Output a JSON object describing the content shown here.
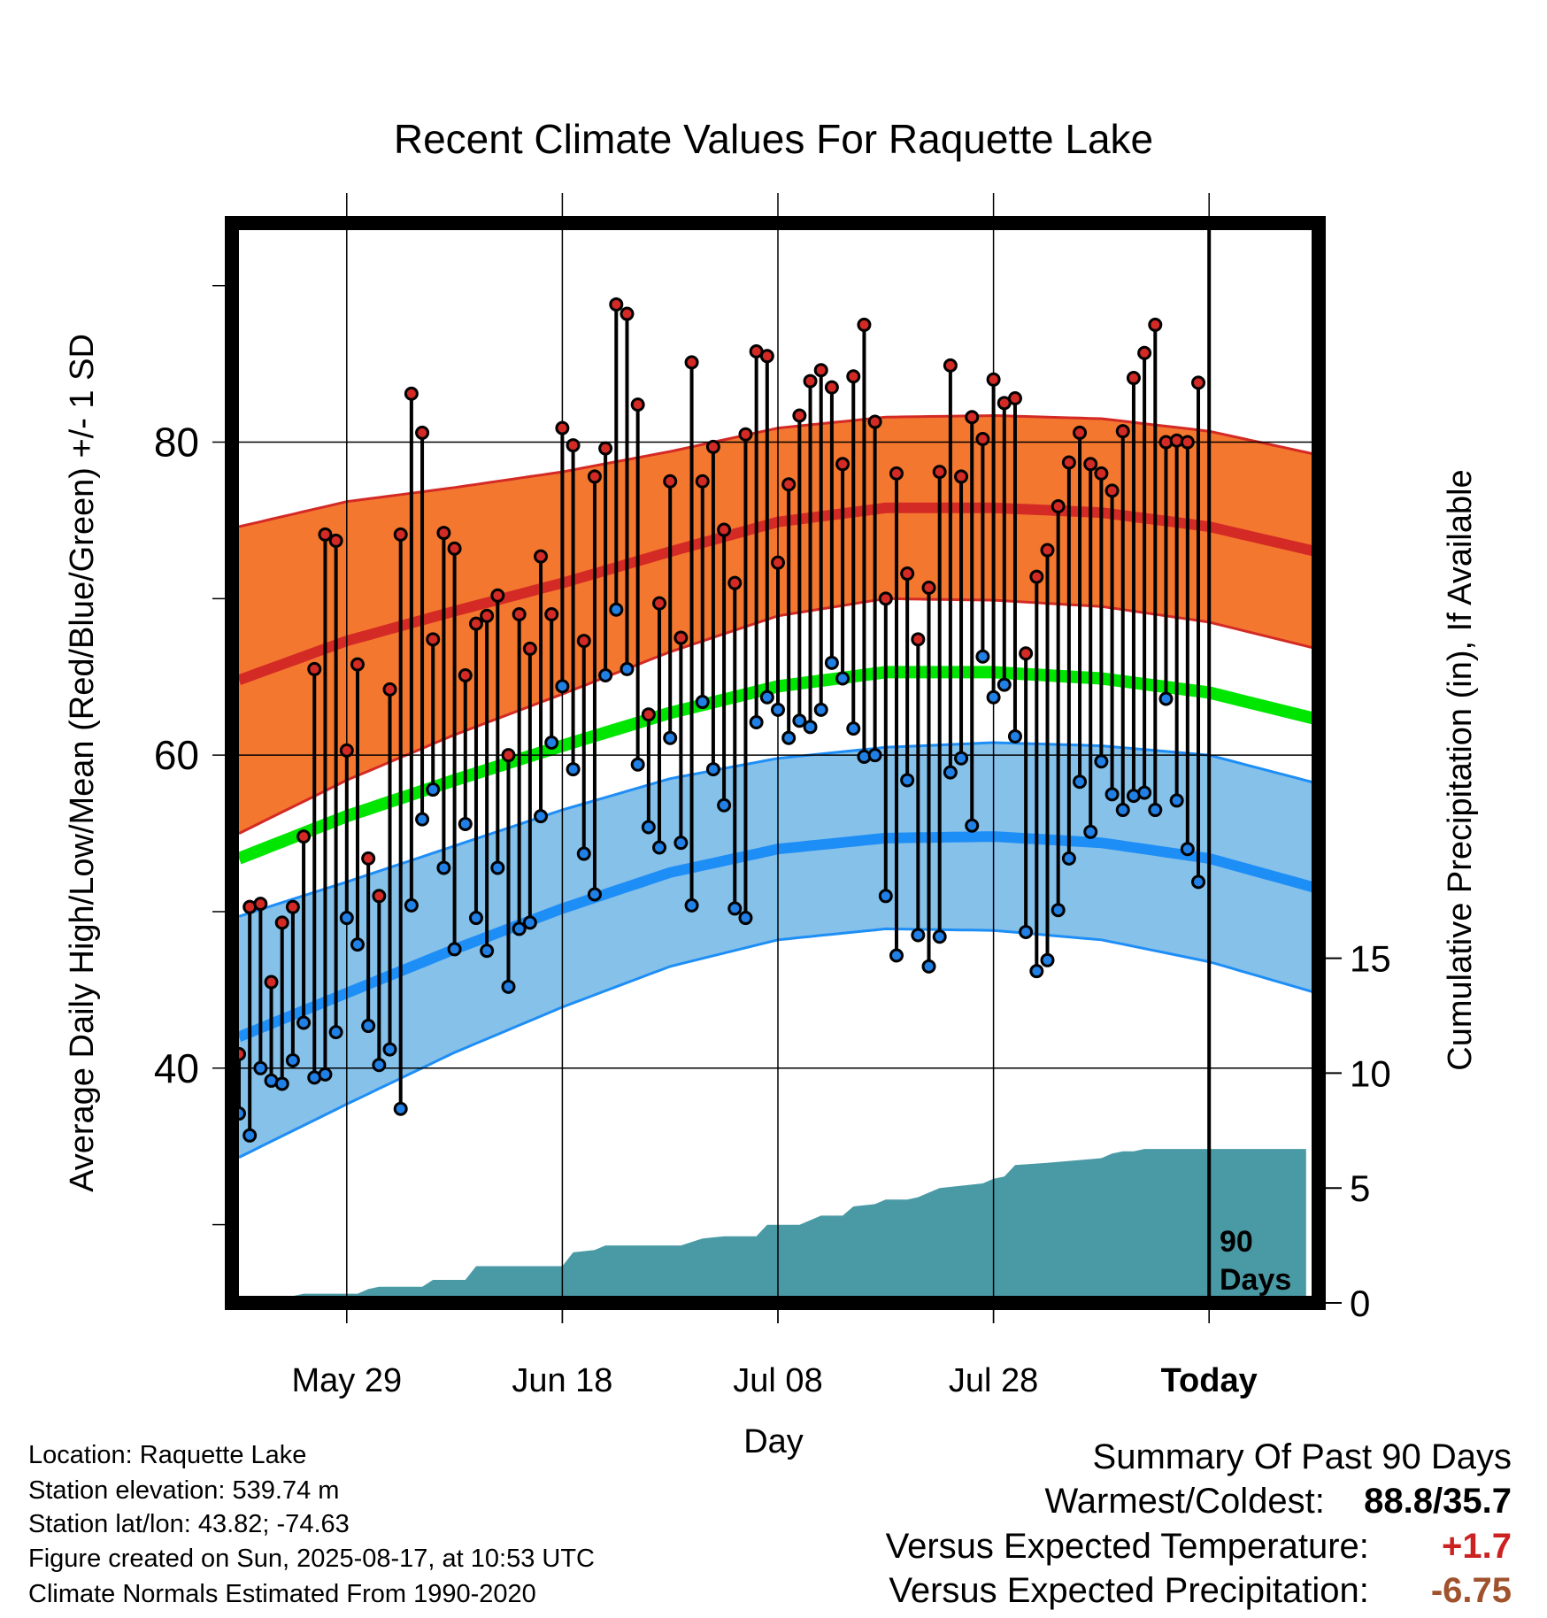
{
  "chart_data": {
    "type": "line",
    "title": "Recent Climate Values For Raquette Lake",
    "xlabel": "Day",
    "ylabel": "Average Daily High/Low/Mean (Red/Blue/Green) +/- 1 SD",
    "y2label": "Cumulative Precipitation (in), If Available",
    "x_tick_labels": [
      "May 29",
      "Jun 18",
      "Jul 08",
      "Jul 28",
      "Today"
    ],
    "y_ticks": [
      40,
      60,
      80
    ],
    "y2_ticks": [
      0,
      5,
      10,
      15
    ],
    "ylim": [
      25,
      94
    ],
    "y2lim": [
      0,
      47
    ],
    "today_label": [
      "90",
      "Days"
    ],
    "grid": true,
    "colors": {
      "high_band": "#f4772f",
      "high_mean": "#d42a25",
      "low_band": "#86c1e9",
      "low_mean": "#1e8ef7",
      "mean": "#00e600",
      "precip": "#4a9aa6",
      "high_dot": "#d42a25",
      "low_dot": "#2080e6"
    },
    "normals": {
      "days": [
        0,
        10,
        20,
        30,
        40,
        50,
        60,
        70,
        80,
        90,
        100
      ],
      "high_mean": [
        64.8,
        67.3,
        69.2,
        71.0,
        73.0,
        74.9,
        75.8,
        75.8,
        75.5,
        74.6,
        73.0
      ],
      "high_sd": [
        9.8,
        8.9,
        7.9,
        7.1,
        6.4,
        6.0,
        5.8,
        5.9,
        6.0,
        6.1,
        6.2
      ],
      "low_mean": [
        42.0,
        44.8,
        47.6,
        50.2,
        52.5,
        54.0,
        54.7,
        54.8,
        54.4,
        53.4,
        51.5
      ],
      "low_sd": [
        7.7,
        7.1,
        6.6,
        6.3,
        6.0,
        5.8,
        5.8,
        6.0,
        6.2,
        6.6,
        6.7
      ],
      "mean": [
        53.4,
        56.1,
        58.4,
        60.6,
        62.7,
        64.4,
        65.3,
        65.3,
        64.9,
        64.0,
        62.3
      ]
    },
    "highs": [
      40.9,
      50.3,
      50.5,
      45.5,
      49.3,
      50.3,
      54.8,
      65.5,
      74.1,
      73.7,
      60.3,
      65.8,
      53.4,
      51.0,
      64.2,
      74.1,
      83.1,
      80.6,
      67.4,
      74.2,
      73.2,
      65.1,
      68.4,
      68.9,
      70.2,
      60.0,
      69.0,
      66.8,
      72.7,
      69.0,
      80.9,
      79.8,
      67.3,
      77.8,
      79.6,
      88.8,
      88.2,
      82.4,
      62.6,
      69.7,
      77.5,
      67.5,
      85.1,
      77.5,
      79.7,
      74.4,
      71.0,
      80.5,
      85.8,
      85.5,
      72.3,
      77.3,
      81.7,
      83.9,
      84.6,
      83.5,
      78.6,
      84.2,
      87.5,
      81.3,
      70.0,
      78.0,
      71.6,
      67.4,
      70.7,
      78.1,
      84.9,
      77.8,
      81.6,
      80.2,
      84.0,
      82.5,
      82.8,
      66.5,
      71.4,
      73.1,
      75.9,
      78.7,
      80.6,
      78.6,
      78.0,
      76.9,
      80.7,
      84.1,
      85.7,
      87.5,
      80.0,
      80.1,
      80.0,
      83.8
    ],
    "lows": [
      37.1,
      35.7,
      40.0,
      39.2,
      39.0,
      40.5,
      42.9,
      39.4,
      39.6,
      42.3,
      49.6,
      47.9,
      42.7,
      40.2,
      41.2,
      37.4,
      50.4,
      55.9,
      57.8,
      52.8,
      47.6,
      55.6,
      49.6,
      47.5,
      52.8,
      45.2,
      48.9,
      49.3,
      56.1,
      60.8,
      64.4,
      59.1,
      53.7,
      51.1,
      65.1,
      69.3,
      65.5,
      59.4,
      55.4,
      54.1,
      61.1,
      54.4,
      50.4,
      63.4,
      59.1,
      56.8,
      50.2,
      49.6,
      62.1,
      63.7,
      62.9,
      61.1,
      62.2,
      61.8,
      62.9,
      65.9,
      64.9,
      61.7,
      59.9,
      60.0,
      51.0,
      47.2,
      58.4,
      48.5,
      46.5,
      48.4,
      58.9,
      59.8,
      55.5,
      66.3,
      63.7,
      64.5,
      61.2,
      48.7,
      46.2,
      46.9,
      50.1,
      53.4,
      58.3,
      55.1,
      59.6,
      57.5,
      56.5,
      57.4,
      57.6,
      56.5,
      63.6,
      57.1,
      54.0,
      51.9
    ],
    "precip_cumulative": [
      [
        0,
        0
      ],
      [
        4,
        0
      ],
      [
        5,
        0.3
      ],
      [
        6,
        0.4
      ],
      [
        11,
        0.4
      ],
      [
        12,
        0.6
      ],
      [
        13,
        0.7
      ],
      [
        17,
        0.7
      ],
      [
        18,
        1.0
      ],
      [
        21,
        1.0
      ],
      [
        22,
        1.6
      ],
      [
        30,
        1.6
      ],
      [
        31,
        2.2
      ],
      [
        33,
        2.3
      ],
      [
        34,
        2.5
      ],
      [
        41,
        2.5
      ],
      [
        43,
        2.8
      ],
      [
        45,
        2.9
      ],
      [
        48,
        2.9
      ],
      [
        49,
        3.4
      ],
      [
        52,
        3.4
      ],
      [
        54,
        3.8
      ],
      [
        56,
        3.8
      ],
      [
        57,
        4.2
      ],
      [
        59,
        4.3
      ],
      [
        60,
        4.5
      ],
      [
        61,
        4.5
      ],
      [
        62,
        4.5
      ],
      [
        63,
        4.6
      ],
      [
        64,
        4.8
      ],
      [
        65,
        5.0
      ],
      [
        67,
        5.1
      ],
      [
        69,
        5.2
      ],
      [
        70,
        5.4
      ],
      [
        71,
        5.5
      ],
      [
        72,
        6.0
      ],
      [
        75,
        6.1
      ],
      [
        80,
        6.3
      ],
      [
        81,
        6.5
      ],
      [
        82,
        6.6
      ],
      [
        83,
        6.6
      ],
      [
        84,
        6.7
      ],
      [
        85,
        6.7
      ],
      [
        90,
        6.7
      ],
      [
        99,
        6.7
      ]
    ],
    "summary": {
      "title": "Summary Of Past 90 Days",
      "warm_cold_label": "Warmest/Coldest:",
      "warm_cold_value": "88.8/35.7",
      "temp_label": "Versus Expected Temperature:",
      "temp_value": "+1.7",
      "temp_color": "#cc2222",
      "precip_label": "Versus Expected Precipitation:",
      "precip_value": "-6.75",
      "precip_color": "#a0522d"
    }
  },
  "info": {
    "location": "Location: Raquette Lake",
    "elevation": "Station elevation: 539.74 m",
    "latlon": "Station lat/lon: 43.82; -74.63",
    "created": "Figure created on Sun, 2025-08-17, at 10:53 UTC",
    "normals": "Climate Normals Estimated From 1990-2020"
  }
}
